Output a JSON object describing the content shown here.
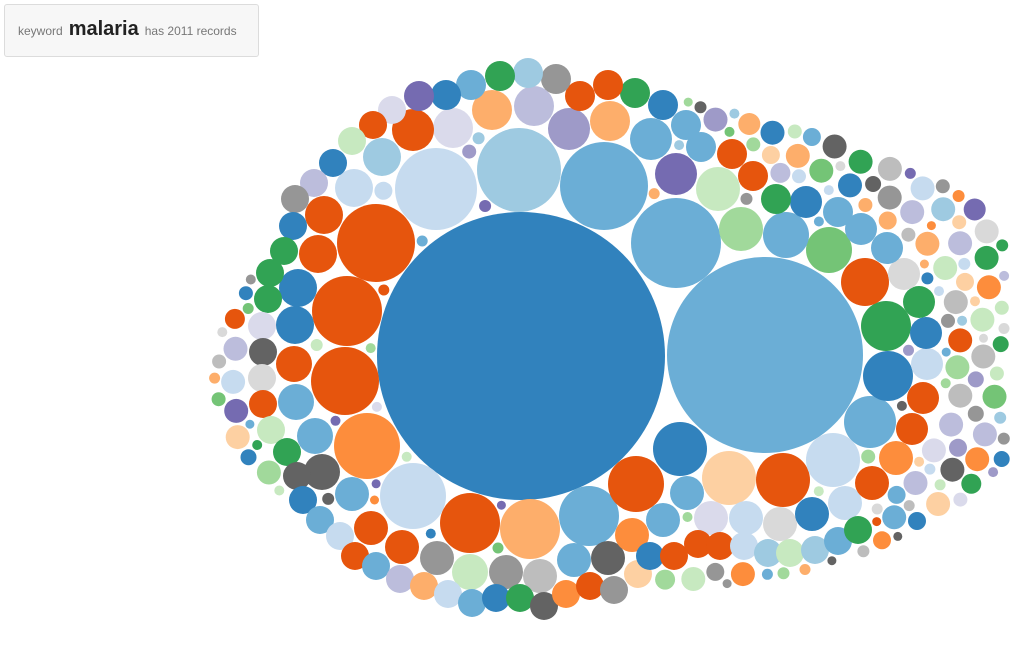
{
  "header": {
    "prefix": "keyword",
    "keyword": "malaria",
    "suffix": "has 2011 records"
  },
  "colors": {
    "dark_blue": "#3182bd",
    "mid_blue": "#6baed6",
    "light_blue": "#9ecae1",
    "pale_blue": "#c6dbef",
    "dark_orange": "#e6550d",
    "orange": "#fd8d3c",
    "light_orange": "#fdae6b",
    "pale_orange": "#fdd0a2",
    "dark_green": "#31a354",
    "green": "#74c476",
    "light_green": "#a1d99b",
    "pale_green": "#c7e9c0",
    "dark_purple": "#756bb1",
    "purple": "#9e9ac8",
    "light_purple": "#bcbddc",
    "pale_purple": "#dadaeb",
    "dark_gray": "#636363",
    "gray": "#969696",
    "light_gray": "#bdbdbd",
    "pale_gray": "#d9d9d9"
  }
}
